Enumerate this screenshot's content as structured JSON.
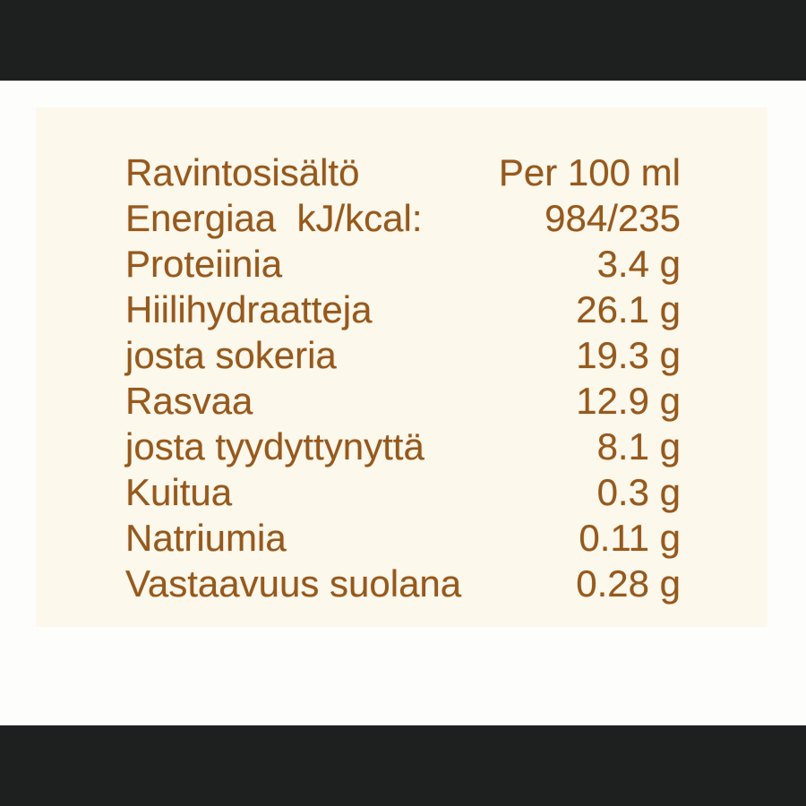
{
  "nutrition_label": {
    "header": {
      "title": "Ravintosisältö",
      "serving": "Per 100 ml"
    },
    "rows": [
      {
        "name": "Energiaa  kJ/kcal:",
        "value": "984/235"
      },
      {
        "name": "Proteiinia",
        "value": "3.4 g"
      },
      {
        "name": "Hiilihydraatteja",
        "value": "26.1 g"
      },
      {
        "name": "josta sokeria",
        "value": "19.3 g"
      },
      {
        "name": "Rasvaa",
        "value": "12.9 g"
      },
      {
        "name": "josta tyydyttynyttä",
        "value": "8.1 g"
      },
      {
        "name": "Kuitua",
        "value": "0.3 g"
      },
      {
        "name": "Natriumia",
        "value": "0.11 g"
      },
      {
        "name": "Vastaavuus suolana",
        "value": "0.28 g"
      }
    ],
    "colors": {
      "text_brown": "#96591c",
      "panel_cream": "#fcf8ec",
      "outer_band_dark": "#1e1f1f",
      "middle_background": "#fdfdfc"
    }
  }
}
